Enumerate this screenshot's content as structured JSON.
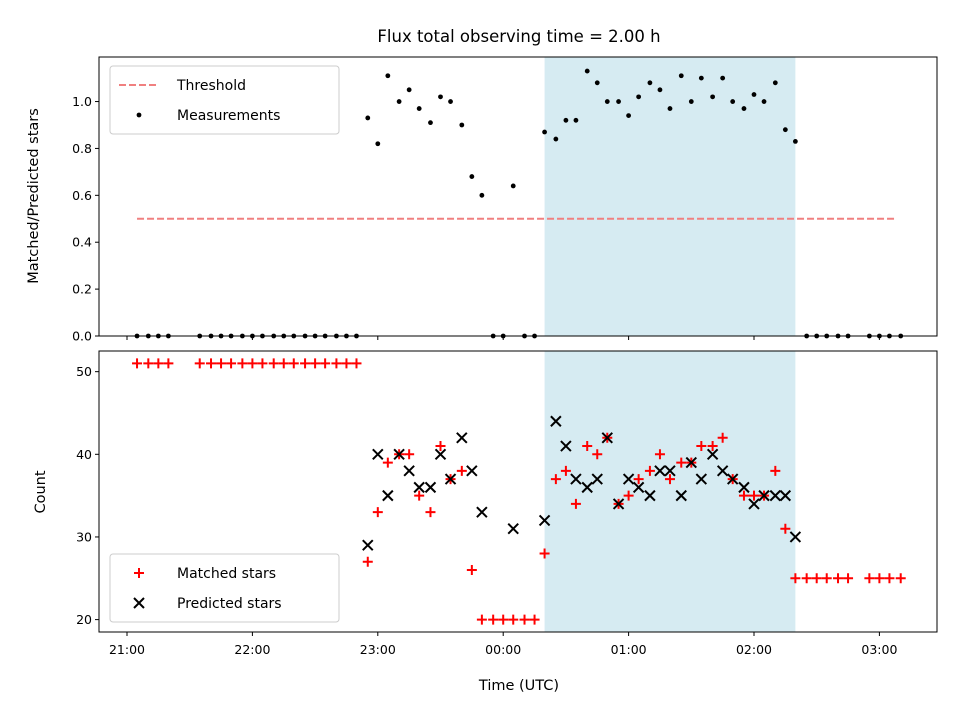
{
  "chart_data": {
    "title": "Flux total observing time = 2.00 h",
    "xlabel": "Time (UTC)",
    "xticks": [
      "21:00",
      "22:00",
      "23:00",
      "00:00",
      "01:00",
      "02:00",
      "03:00"
    ],
    "shaded_interval_hours": [
      3.33,
      5.33
    ],
    "shade_color": "#add8e6",
    "panels": [
      {
        "type": "scatter",
        "ylabel": "Matched/Predicted stars",
        "ylim": [
          0,
          1.19
        ],
        "yticks": [
          "0.0",
          "0.2",
          "0.4",
          "0.6",
          "0.8",
          "1.0"
        ],
        "threshold": {
          "name": "Threshold",
          "value": 0.5,
          "x_range_hours": [
            0.08,
            6.13
          ],
          "color": "#f08080"
        },
        "series": [
          {
            "name": "Measurements",
            "color": "#000000",
            "points": [
              [
                0.08,
                0
              ],
              [
                0.17,
                0
              ],
              [
                0.25,
                0
              ],
              [
                0.33,
                0
              ],
              [
                0.58,
                0
              ],
              [
                0.67,
                0
              ],
              [
                0.75,
                0
              ],
              [
                0.83,
                0
              ],
              [
                0.92,
                0
              ],
              [
                1.0,
                0
              ],
              [
                1.08,
                0
              ],
              [
                1.17,
                0
              ],
              [
                1.25,
                0
              ],
              [
                1.33,
                0
              ],
              [
                1.42,
                0
              ],
              [
                1.5,
                0
              ],
              [
                1.58,
                0
              ],
              [
                1.67,
                0
              ],
              [
                1.75,
                0
              ],
              [
                1.83,
                0
              ],
              [
                1.92,
                0.93
              ],
              [
                2.0,
                0.82
              ],
              [
                2.08,
                1.11
              ],
              [
                2.17,
                1.0
              ],
              [
                2.25,
                1.05
              ],
              [
                2.33,
                0.97
              ],
              [
                2.42,
                0.91
              ],
              [
                2.5,
                1.02
              ],
              [
                2.58,
                1.0
              ],
              [
                2.67,
                0.9
              ],
              [
                2.75,
                0.68
              ],
              [
                2.83,
                0.6
              ],
              [
                2.92,
                0
              ],
              [
                3.0,
                0
              ],
              [
                3.08,
                0.64
              ],
              [
                3.17,
                0
              ],
              [
                3.25,
                0
              ],
              [
                3.33,
                0.87
              ],
              [
                3.42,
                0.84
              ],
              [
                3.5,
                0.92
              ],
              [
                3.58,
                0.92
              ],
              [
                3.67,
                1.13
              ],
              [
                3.75,
                1.08
              ],
              [
                3.83,
                1.0
              ],
              [
                3.92,
                1.0
              ],
              [
                4.0,
                0.94
              ],
              [
                4.08,
                1.02
              ],
              [
                4.17,
                1.08
              ],
              [
                4.25,
                1.05
              ],
              [
                4.33,
                0.97
              ],
              [
                4.42,
                1.11
              ],
              [
                4.5,
                1.0
              ],
              [
                4.58,
                1.1
              ],
              [
                4.67,
                1.02
              ],
              [
                4.75,
                1.1
              ],
              [
                4.83,
                1.0
              ],
              [
                4.92,
                0.97
              ],
              [
                5.0,
                1.03
              ],
              [
                5.08,
                1.0
              ],
              [
                5.17,
                1.08
              ],
              [
                5.25,
                0.88
              ],
              [
                5.33,
                0.83
              ],
              [
                5.42,
                0
              ],
              [
                5.5,
                0
              ],
              [
                5.58,
                0
              ],
              [
                5.67,
                0
              ],
              [
                5.75,
                0
              ],
              [
                5.92,
                0
              ],
              [
                6.0,
                0
              ],
              [
                6.08,
                0
              ],
              [
                6.17,
                0
              ]
            ]
          }
        ],
        "legend_position": "top-left"
      },
      {
        "type": "scatter",
        "ylabel": "Count",
        "ylim": [
          18.5,
          52.5
        ],
        "yticks": [
          "20",
          "30",
          "40",
          "50"
        ],
        "series": [
          {
            "name": "Matched stars",
            "marker": "plus",
            "color": "#ff0000",
            "points": [
              [
                0.08,
                51
              ],
              [
                0.17,
                51
              ],
              [
                0.25,
                51
              ],
              [
                0.33,
                51
              ],
              [
                0.58,
                51
              ],
              [
                0.67,
                51
              ],
              [
                0.75,
                51
              ],
              [
                0.83,
                51
              ],
              [
                0.92,
                51
              ],
              [
                1.0,
                51
              ],
              [
                1.08,
                51
              ],
              [
                1.17,
                51
              ],
              [
                1.25,
                51
              ],
              [
                1.33,
                51
              ],
              [
                1.42,
                51
              ],
              [
                1.5,
                51
              ],
              [
                1.58,
                51
              ],
              [
                1.67,
                51
              ],
              [
                1.75,
                51
              ],
              [
                1.83,
                51
              ],
              [
                1.92,
                27
              ],
              [
                2.0,
                33
              ],
              [
                2.08,
                39
              ],
              [
                2.17,
                40
              ],
              [
                2.25,
                40
              ],
              [
                2.33,
                35
              ],
              [
                2.42,
                33
              ],
              [
                2.5,
                41
              ],
              [
                2.58,
                37
              ],
              [
                2.67,
                38
              ],
              [
                2.75,
                26
              ],
              [
                2.83,
                20
              ],
              [
                2.92,
                20
              ],
              [
                3.0,
                20
              ],
              [
                3.08,
                20
              ],
              [
                3.17,
                20
              ],
              [
                3.25,
                20
              ],
              [
                3.33,
                28
              ],
              [
                3.42,
                37
              ],
              [
                3.5,
                38
              ],
              [
                3.58,
                34
              ],
              [
                3.67,
                41
              ],
              [
                3.75,
                40
              ],
              [
                3.83,
                42
              ],
              [
                3.92,
                34
              ],
              [
                4.0,
                35
              ],
              [
                4.08,
                37
              ],
              [
                4.17,
                38
              ],
              [
                4.25,
                40
              ],
              [
                4.33,
                37
              ],
              [
                4.42,
                39
              ],
              [
                4.5,
                39
              ],
              [
                4.58,
                41
              ],
              [
                4.67,
                41
              ],
              [
                4.75,
                42
              ],
              [
                4.83,
                37
              ],
              [
                4.92,
                35
              ],
              [
                5.0,
                35
              ],
              [
                5.08,
                35
              ],
              [
                5.17,
                38
              ],
              [
                5.25,
                31
              ],
              [
                5.33,
                25
              ],
              [
                5.42,
                25
              ],
              [
                5.5,
                25
              ],
              [
                5.58,
                25
              ],
              [
                5.67,
                25
              ],
              [
                5.75,
                25
              ],
              [
                5.92,
                25
              ],
              [
                6.0,
                25
              ],
              [
                6.08,
                25
              ],
              [
                6.17,
                25
              ]
            ]
          },
          {
            "name": "Predicted stars",
            "marker": "cross",
            "color": "#000000",
            "points": [
              [
                1.92,
                29
              ],
              [
                2.0,
                40
              ],
              [
                2.08,
                35
              ],
              [
                2.17,
                40
              ],
              [
                2.25,
                38
              ],
              [
                2.33,
                36
              ],
              [
                2.42,
                36
              ],
              [
                2.5,
                40
              ],
              [
                2.58,
                37
              ],
              [
                2.67,
                42
              ],
              [
                2.75,
                38
              ],
              [
                2.83,
                33
              ],
              [
                3.08,
                31
              ],
              [
                3.33,
                32
              ],
              [
                3.42,
                44
              ],
              [
                3.5,
                41
              ],
              [
                3.58,
                37
              ],
              [
                3.67,
                36
              ],
              [
                3.75,
                37
              ],
              [
                3.83,
                42
              ],
              [
                3.92,
                34
              ],
              [
                4.0,
                37
              ],
              [
                4.08,
                36
              ],
              [
                4.17,
                35
              ],
              [
                4.25,
                38
              ],
              [
                4.33,
                38
              ],
              [
                4.42,
                35
              ],
              [
                4.5,
                39
              ],
              [
                4.58,
                37
              ],
              [
                4.67,
                40
              ],
              [
                4.75,
                38
              ],
              [
                4.83,
                37
              ],
              [
                4.92,
                36
              ],
              [
                5.0,
                34
              ],
              [
                5.08,
                35
              ],
              [
                5.17,
                35
              ],
              [
                5.25,
                35
              ],
              [
                5.33,
                30
              ]
            ]
          }
        ],
        "legend_position": "bottom-left"
      }
    ]
  }
}
